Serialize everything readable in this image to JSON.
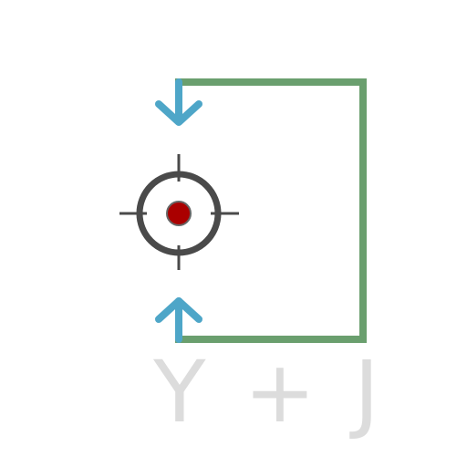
{
  "diagram": {
    "shortcut_label": "Y + J",
    "colors": {
      "frame": "#6a9f6e",
      "arrows": "#4ea6c8",
      "crosshair": "#4a4a4a",
      "target_dot": "#aa0000",
      "label": "#dcdcdc"
    },
    "icons": [
      "crosshair-icon",
      "arrow-down-icon",
      "arrow-up-icon"
    ]
  }
}
